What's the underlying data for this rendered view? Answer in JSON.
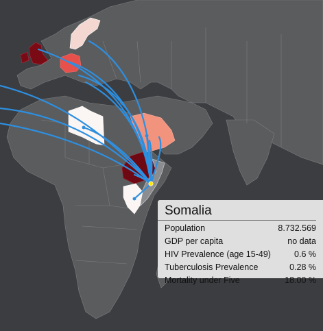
{
  "info_panel": {
    "country": "Somalia",
    "rows": [
      {
        "label": "Population",
        "value": "8.732.569"
      },
      {
        "label": "GDP per capita",
        "value": "no data"
      },
      {
        "label": "HIV Prevalence (age 15-49)",
        "value": "0.6 %"
      },
      {
        "label": "Tuberculosis Prevalence",
        "value": "0.28 %"
      },
      {
        "label": "Mortality under Five",
        "value": "18.00 %"
      }
    ]
  },
  "colors": {
    "ocean": "#3b3d40",
    "land": "#5a5c5e",
    "flow_line": "#2e8fe0",
    "selected_point": "#ffe800",
    "highest": "#7a0a14",
    "high": "#e8514b",
    "medium": "#f2937e",
    "low": "#fbf6f4"
  },
  "highlighted_countries": [
    "United Kingdom",
    "Germany",
    "Sweden",
    "Libya",
    "Saudi Arabia",
    "Ethiopia",
    "Kenya",
    "Somalia"
  ],
  "selected_country": "Somalia"
}
